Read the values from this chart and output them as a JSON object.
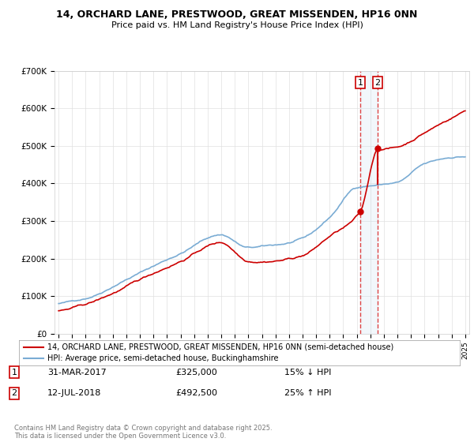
{
  "title_line1": "14, ORCHARD LANE, PRESTWOOD, GREAT MISSENDEN, HP16 0NN",
  "title_line2": "Price paid vs. HM Land Registry's House Price Index (HPI)",
  "legend_label1": "14, ORCHARD LANE, PRESTWOOD, GREAT MISSENDEN, HP16 0NN (semi-detached house)",
  "legend_label2": "HPI: Average price, semi-detached house, Buckinghamshire",
  "annotation1_date": "31-MAR-2017",
  "annotation1_price": "£325,000",
  "annotation1_hpi": "15% ↓ HPI",
  "annotation2_date": "12-JUL-2018",
  "annotation2_price": "£492,500",
  "annotation2_hpi": "25% ↑ HPI",
  "footer": "Contains HM Land Registry data © Crown copyright and database right 2025.\nThis data is licensed under the Open Government Licence v3.0.",
  "color_red": "#cc0000",
  "color_blue": "#7aacd4",
  "color_dashed": "#dd4444",
  "color_shade": "#cce0f0",
  "ylim_min": 0,
  "ylim_max": 700000,
  "marker1_year": 2017.25,
  "marker1_price": 325000,
  "marker2_year": 2018.54,
  "marker2_price": 492500
}
